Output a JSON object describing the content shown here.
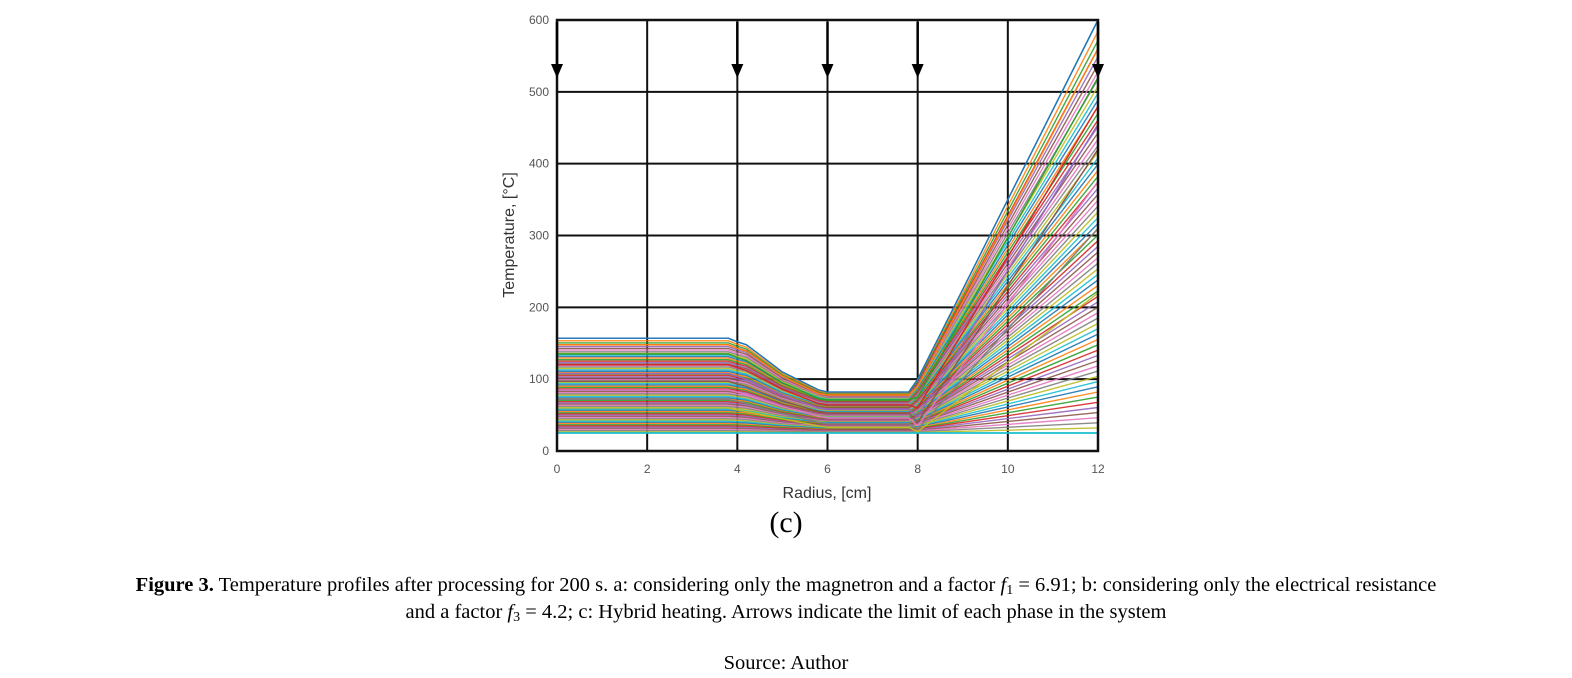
{
  "chart_data": {
    "type": "line",
    "xlabel": "Radius, [cm]",
    "ylabel": "Temperature, [°C]",
    "xlim": [
      0,
      12
    ],
    "ylim": [
      0,
      600
    ],
    "xticks": [
      "0",
      "2",
      "4",
      "6",
      "8",
      "10",
      "12"
    ],
    "yticks": [
      "0",
      "100",
      "200",
      "300",
      "400",
      "500",
      "600"
    ],
    "grid": true,
    "legend": "none",
    "phase_boundary_arrows_x": [
      0,
      4,
      6,
      8,
      12
    ],
    "profile_family": {
      "description_count": 70,
      "x": [
        0,
        3.8,
        4.0,
        4.2,
        5.0,
        5.8,
        6.0,
        7.8,
        8.0,
        12.0
      ],
      "hottest_profile": [
        157,
        157,
        152,
        148,
        110,
        85,
        82,
        82,
        100,
        600
      ],
      "coolest_profile": [
        25,
        25,
        25,
        25,
        25,
        25,
        25,
        25,
        25,
        25
      ]
    },
    "series": [
      {
        "values": [
          157,
          157,
          152,
          148,
          110,
          85,
          82,
          82,
          100,
          600
        ]
      },
      {
        "values": [
          148,
          148,
          143,
          139,
          104,
          80,
          78,
          78,
          90,
          560
        ]
      },
      {
        "values": [
          135,
          135,
          130,
          126,
          95,
          73,
          71,
          71,
          75,
          520
        ]
      },
      {
        "values": [
          120,
          120,
          116,
          112,
          86,
          66,
          64,
          64,
          60,
          480
        ]
      },
      {
        "values": [
          108,
          108,
          104,
          100,
          78,
          60,
          58,
          58,
          48,
          455
        ]
      },
      {
        "values": [
          97,
          97,
          93,
          90,
          70,
          55,
          53,
          53,
          40,
          420
        ]
      },
      {
        "values": [
          85,
          85,
          82,
          79,
          62,
          48,
          46,
          46,
          35,
          375
        ]
      },
      {
        "values": [
          72,
          72,
          69,
          66,
          52,
          40,
          38,
          38,
          30,
          310
        ]
      },
      {
        "values": [
          60,
          60,
          57,
          55,
          45,
          35,
          33,
          33,
          27,
          220
        ]
      },
      {
        "values": [
          25,
          25,
          25,
          25,
          25,
          25,
          25,
          25,
          25,
          25
        ]
      }
    ],
    "colors": [
      "#1f77b4",
      "#ff7f0e",
      "#2ca02c",
      "#d62728",
      "#9467bd",
      "#8c564b",
      "#e377c2",
      "#7f7f7f",
      "#bcbd22",
      "#17becf"
    ]
  },
  "panel_label": "(c)",
  "caption": {
    "figure_label": "Figure 3.",
    "part1": " Temperature profiles after processing for 200 s. a: considering only the magnetron and a factor ",
    "f1_symbol": "f",
    "f1_sub": "1",
    "f1_value": " = 6.91; b: considering only the electrical resistance",
    "part2": "and a factor ",
    "f3_symbol": "f",
    "f3_sub": "3",
    "f3_value": " = 4.2; c: Hybrid heating. Arrows indicate the limit of each phase in the system"
  },
  "source": "Source: Author"
}
